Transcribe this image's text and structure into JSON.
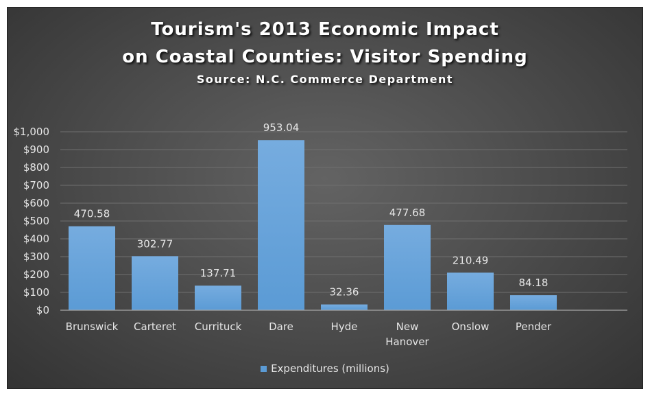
{
  "chart_data": {
    "type": "bar",
    "title": "Tourism's 2013 Economic Impact",
    "title_line2": "on Coastal Counties: Visitor Spending",
    "subtitle": "Source: N.C. Commerce Department",
    "categories": [
      [
        "Brunswick"
      ],
      [
        "Carteret"
      ],
      [
        "Currituck"
      ],
      [
        "Dare"
      ],
      [
        "Hyde"
      ],
      [
        "New",
        "Hanover"
      ],
      [
        "Onslow"
      ],
      [
        "Pender"
      ]
    ],
    "series": [
      {
        "name": "Expenditures (millions)",
        "values": [
          470.58,
          302.77,
          137.71,
          953.04,
          32.36,
          477.68,
          210.49,
          84.18
        ],
        "color": "#5b9bd5"
      }
    ],
    "data_labels": [
      "470.58",
      "302.77",
      "137.71",
      "953.04",
      "32.36",
      "477.68",
      "210.49",
      "84.18"
    ],
    "y_ticks": [
      0,
      100,
      200,
      300,
      400,
      500,
      600,
      700,
      800,
      900,
      1000
    ],
    "y_tick_labels": [
      "$0",
      "$100",
      "$200",
      "$300",
      "$400",
      "$500",
      "$600",
      "$700",
      "$800",
      "$900",
      "$1,000"
    ],
    "ylim": [
      0,
      1000
    ],
    "grid": true,
    "legend_position": "bottom",
    "colors": {
      "bar": "#5b9bd5",
      "bar_highlight": "#76acdf",
      "gridline": "#6f6f6f",
      "axis": "#a6a6a6",
      "text": "#e6e6e6"
    }
  }
}
